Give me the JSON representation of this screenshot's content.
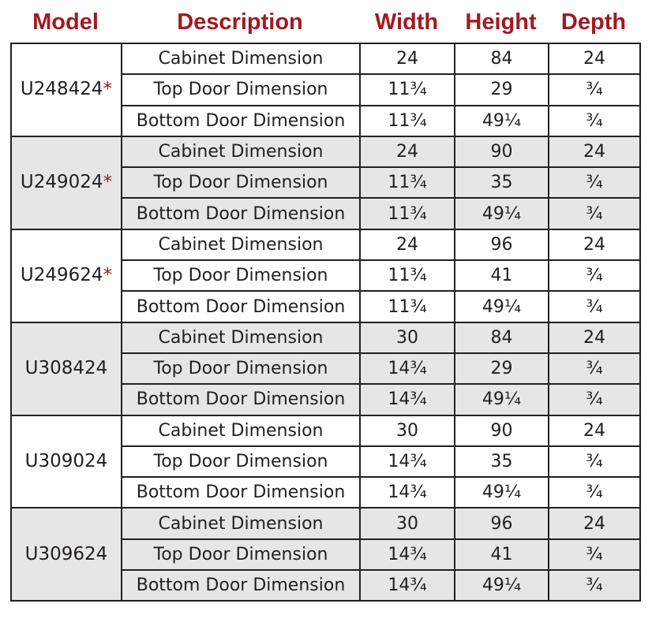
{
  "headers": {
    "model": "Model",
    "description": "Description",
    "width": "Width",
    "height": "Height",
    "depth": "Depth"
  },
  "colors": {
    "header": "#a3191f",
    "star": "#a3191f",
    "shaded_row": "#e6e6e6"
  },
  "groups": [
    {
      "model": "U248424",
      "star": "*",
      "shaded": false,
      "rows": [
        {
          "description": "Cabinet Dimension",
          "width": "24",
          "height": "84",
          "depth": "24"
        },
        {
          "description": "Top Door Dimension",
          "width": "11¾",
          "height": "29",
          "depth": "¾"
        },
        {
          "description": "Bottom Door Dimension",
          "width": "11¾",
          "height": "49¼",
          "depth": "¾"
        }
      ]
    },
    {
      "model": "U249024",
      "star": "*",
      "shaded": true,
      "rows": [
        {
          "description": "Cabinet Dimension",
          "width": "24",
          "height": "90",
          "depth": "24"
        },
        {
          "description": "Top Door Dimension",
          "width": "11¾",
          "height": "35",
          "depth": "¾"
        },
        {
          "description": "Bottom Door Dimension",
          "width": "11¾",
          "height": "49¼",
          "depth": "¾"
        }
      ]
    },
    {
      "model": "U249624",
      "star": "*",
      "shaded": false,
      "rows": [
        {
          "description": "Cabinet Dimension",
          "width": "24",
          "height": "96",
          "depth": "24"
        },
        {
          "description": "Top Door Dimension",
          "width": "11¾",
          "height": "41",
          "depth": "¾"
        },
        {
          "description": "Bottom Door Dimension",
          "width": "11¾",
          "height": "49¼",
          "depth": "¾"
        }
      ]
    },
    {
      "model": "U308424",
      "star": "",
      "shaded": true,
      "rows": [
        {
          "description": "Cabinet Dimension",
          "width": "30",
          "height": "84",
          "depth": "24"
        },
        {
          "description": "Top Door Dimension",
          "width": "14¾",
          "height": "29",
          "depth": "¾"
        },
        {
          "description": "Bottom Door Dimension",
          "width": "14¾",
          "height": "49¼",
          "depth": "¾"
        }
      ]
    },
    {
      "model": "U309024",
      "star": "",
      "shaded": false,
      "rows": [
        {
          "description": "Cabinet Dimension",
          "width": "30",
          "height": "90",
          "depth": "24"
        },
        {
          "description": "Top Door Dimension",
          "width": "14¾",
          "height": "35",
          "depth": "¾"
        },
        {
          "description": "Bottom Door Dimension",
          "width": "14¾",
          "height": "49¼",
          "depth": "¾"
        }
      ]
    },
    {
      "model": "U309624",
      "star": "",
      "shaded": true,
      "rows": [
        {
          "description": "Cabinet Dimension",
          "width": "30",
          "height": "96",
          "depth": "24"
        },
        {
          "description": "Top Door Dimension",
          "width": "14¾",
          "height": "41",
          "depth": "¾"
        },
        {
          "description": "Bottom Door Dimension",
          "width": "14¾",
          "height": "49¼",
          "depth": "¾"
        }
      ]
    }
  ]
}
